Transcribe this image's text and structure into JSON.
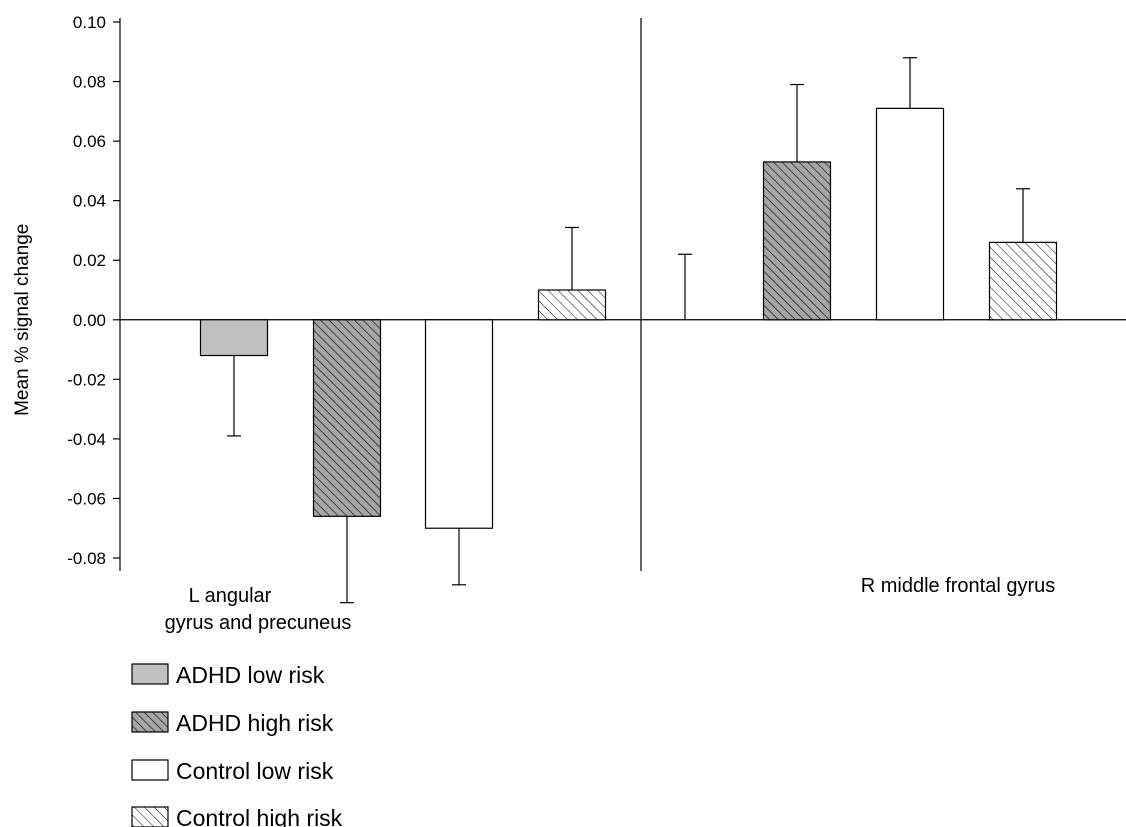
{
  "chart_data": {
    "type": "bar",
    "ylabel": "Mean % signal change",
    "xlabel": "",
    "ylim": [
      -0.08,
      0.1
    ],
    "yticks": [
      "0.10",
      "0.08",
      "0.06",
      "0.04",
      "0.02",
      "0.00",
      "-0.02",
      "-0.04",
      "-0.06",
      "-0.08"
    ],
    "ytick_values": [
      0.1,
      0.08,
      0.06,
      0.04,
      0.02,
      0.0,
      -0.02,
      -0.04,
      -0.06,
      -0.08
    ],
    "groups": [
      {
        "label_lines": [
          "L angular",
          "gyrus and precuneus"
        ]
      },
      {
        "label_lines": [
          "R middle frontal gyrus"
        ]
      }
    ],
    "series": [
      {
        "name": "ADHD low risk",
        "pattern": "solid-gray",
        "values": [
          -0.012,
          0.0
        ],
        "errors": [
          0.027,
          0.022
        ]
      },
      {
        "name": "ADHD high risk",
        "pattern": "dense-hatch-gray",
        "values": [
          -0.066,
          0.053
        ],
        "errors": [
          0.029,
          0.026
        ]
      },
      {
        "name": "Control low risk",
        "pattern": "white",
        "values": [
          -0.07,
          0.071
        ],
        "errors": [
          0.019,
          0.017
        ]
      },
      {
        "name": "Control high risk",
        "pattern": "sparse-hatch-white",
        "values": [
          0.01,
          0.026
        ],
        "errors": [
          0.021,
          0.018
        ]
      }
    ],
    "grid": false,
    "legend_position": "bottom-left"
  },
  "colors": {
    "bar_gray": "#c0c0c0",
    "bar_hatch_gray": "#a6a6a6",
    "line": "#000000"
  }
}
